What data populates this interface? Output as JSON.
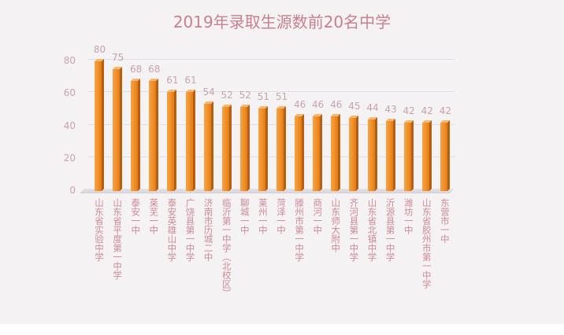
{
  "title": "2019年录取生源数前20名中学",
  "chart_data": {
    "type": "bar",
    "title": "2019年录取生源数前20名中学",
    "xlabel": "",
    "ylabel": "",
    "ylim": [
      0,
      80
    ],
    "yticks": [
      "0",
      "20",
      "40",
      "60",
      "80"
    ],
    "grid": true,
    "legend": null,
    "style": "3d-column",
    "colors": {
      "bar": "#ef8d26",
      "bar_side": "#b85e10",
      "title": "#c9808f",
      "labels": "#cf8a98",
      "ticks": "#c9a3ab",
      "grid": "#dedcef",
      "background": "#f4f2f3"
    },
    "categories": [
      "山东省实验中学",
      "山东省平度第一中学",
      "泰安一中",
      "莱芜一中",
      "泰安英雄山中学",
      "广饶县第一中学",
      "济南市历城二中",
      "临沂第一中学（北校区）",
      "聊城一中",
      "莱州一中",
      "菏泽一中",
      "滕州市第一中学",
      "商河一中",
      "山东师大附中",
      "齐河县第一中学",
      "山东省北镇中学",
      "沂源县第一中学",
      "潍坊一中",
      "山东省胶州市第一中学",
      "东营市一中"
    ],
    "values": [
      80,
      75,
      68,
      68,
      61,
      61,
      54,
      52,
      52,
      51,
      51,
      46,
      46,
      46,
      45,
      44,
      43,
      42,
      42,
      42
    ],
    "value_labels": [
      "80",
      "75",
      "68",
      "68",
      "61",
      "61",
      "54",
      "52",
      "52",
      "51",
      "51",
      "46",
      "46",
      "46",
      "45",
      "44",
      "43",
      "42",
      "42",
      "42"
    ]
  }
}
